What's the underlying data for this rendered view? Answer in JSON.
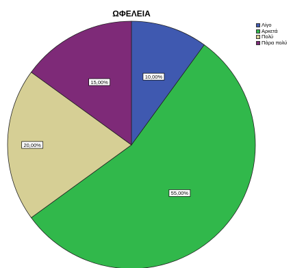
{
  "chart_data": {
    "type": "pie",
    "title": "ΩΦΕΛΕΙΑ",
    "categories": [
      "Λίγο",
      "Αρκετά",
      "Πολύ",
      "Πάρα πολύ"
    ],
    "values": [
      10,
      55,
      20,
      15
    ],
    "labels": [
      "10,00%",
      "55,00%",
      "20,00%",
      "15,00%"
    ],
    "colors": [
      "#3f59b0",
      "#31b84b",
      "#d6cf95",
      "#7e2a78"
    ],
    "start_angle": "12 o'clock",
    "direction": "clockwise",
    "legend_position": "top-right"
  }
}
